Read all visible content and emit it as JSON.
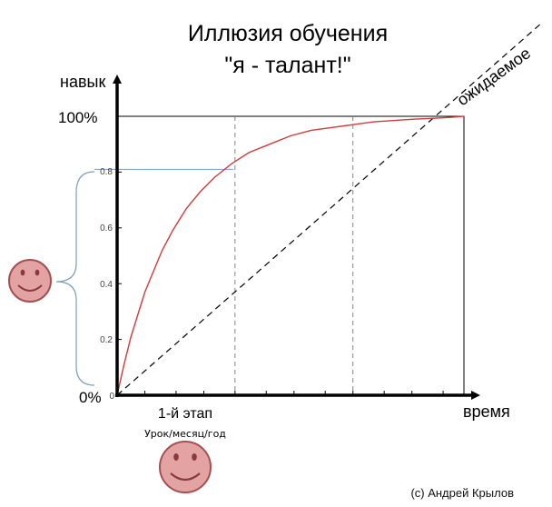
{
  "title_line1": "Иллюзия обучения",
  "title_line2": "\"я - талант!\"",
  "credit": "(c) Андрей Крылов",
  "colors": {
    "curve": "#d03c3c",
    "axis": "#000000",
    "frame": "#000000",
    "brace": "#7a9fbf",
    "face_fill": "#e4a3a3",
    "face_stroke": "#a55050"
  },
  "chart_data": {
    "type": "line",
    "xlabel": "время",
    "ylabel": "навык",
    "y_max_label": "100%",
    "y_min_label": "0%",
    "yticks": [
      "0.8",
      "0.6",
      "0.4",
      "0.2",
      "0"
    ],
    "ytick_values": [
      0.8,
      0.6,
      0.4,
      0.2,
      0
    ],
    "ylim": [
      0,
      1
    ],
    "xlim": [
      0,
      1
    ],
    "series": [
      {
        "style": "solid",
        "color": "#d03c3c",
        "x": [
          0,
          0.02,
          0.04,
          0.06,
          0.08,
          0.1,
          0.13,
          0.16,
          0.2,
          0.24,
          0.28,
          0.33,
          0.38,
          0.44,
          0.5,
          0.56,
          0.62,
          0.68,
          0.74,
          0.8,
          0.86,
          0.92,
          0.96,
          1.0
        ],
        "y": [
          0,
          0.11,
          0.21,
          0.29,
          0.37,
          0.43,
          0.52,
          0.59,
          0.67,
          0.73,
          0.78,
          0.83,
          0.87,
          0.9,
          0.93,
          0.95,
          0.96,
          0.97,
          0.98,
          0.985,
          0.99,
          0.993,
          0.996,
          1.0
        ]
      },
      {
        "label": "ожидаемое",
        "style": "dashed",
        "x": [
          0,
          1.22
        ],
        "y": [
          0,
          1.33
        ]
      }
    ],
    "annotations": {
      "stage_label": "1-й этап",
      "stage_sublabel": "Урок/месяц/год",
      "stage_x": 0.34,
      "mid_x": 0.68,
      "stage_y": 0.81
    }
  }
}
